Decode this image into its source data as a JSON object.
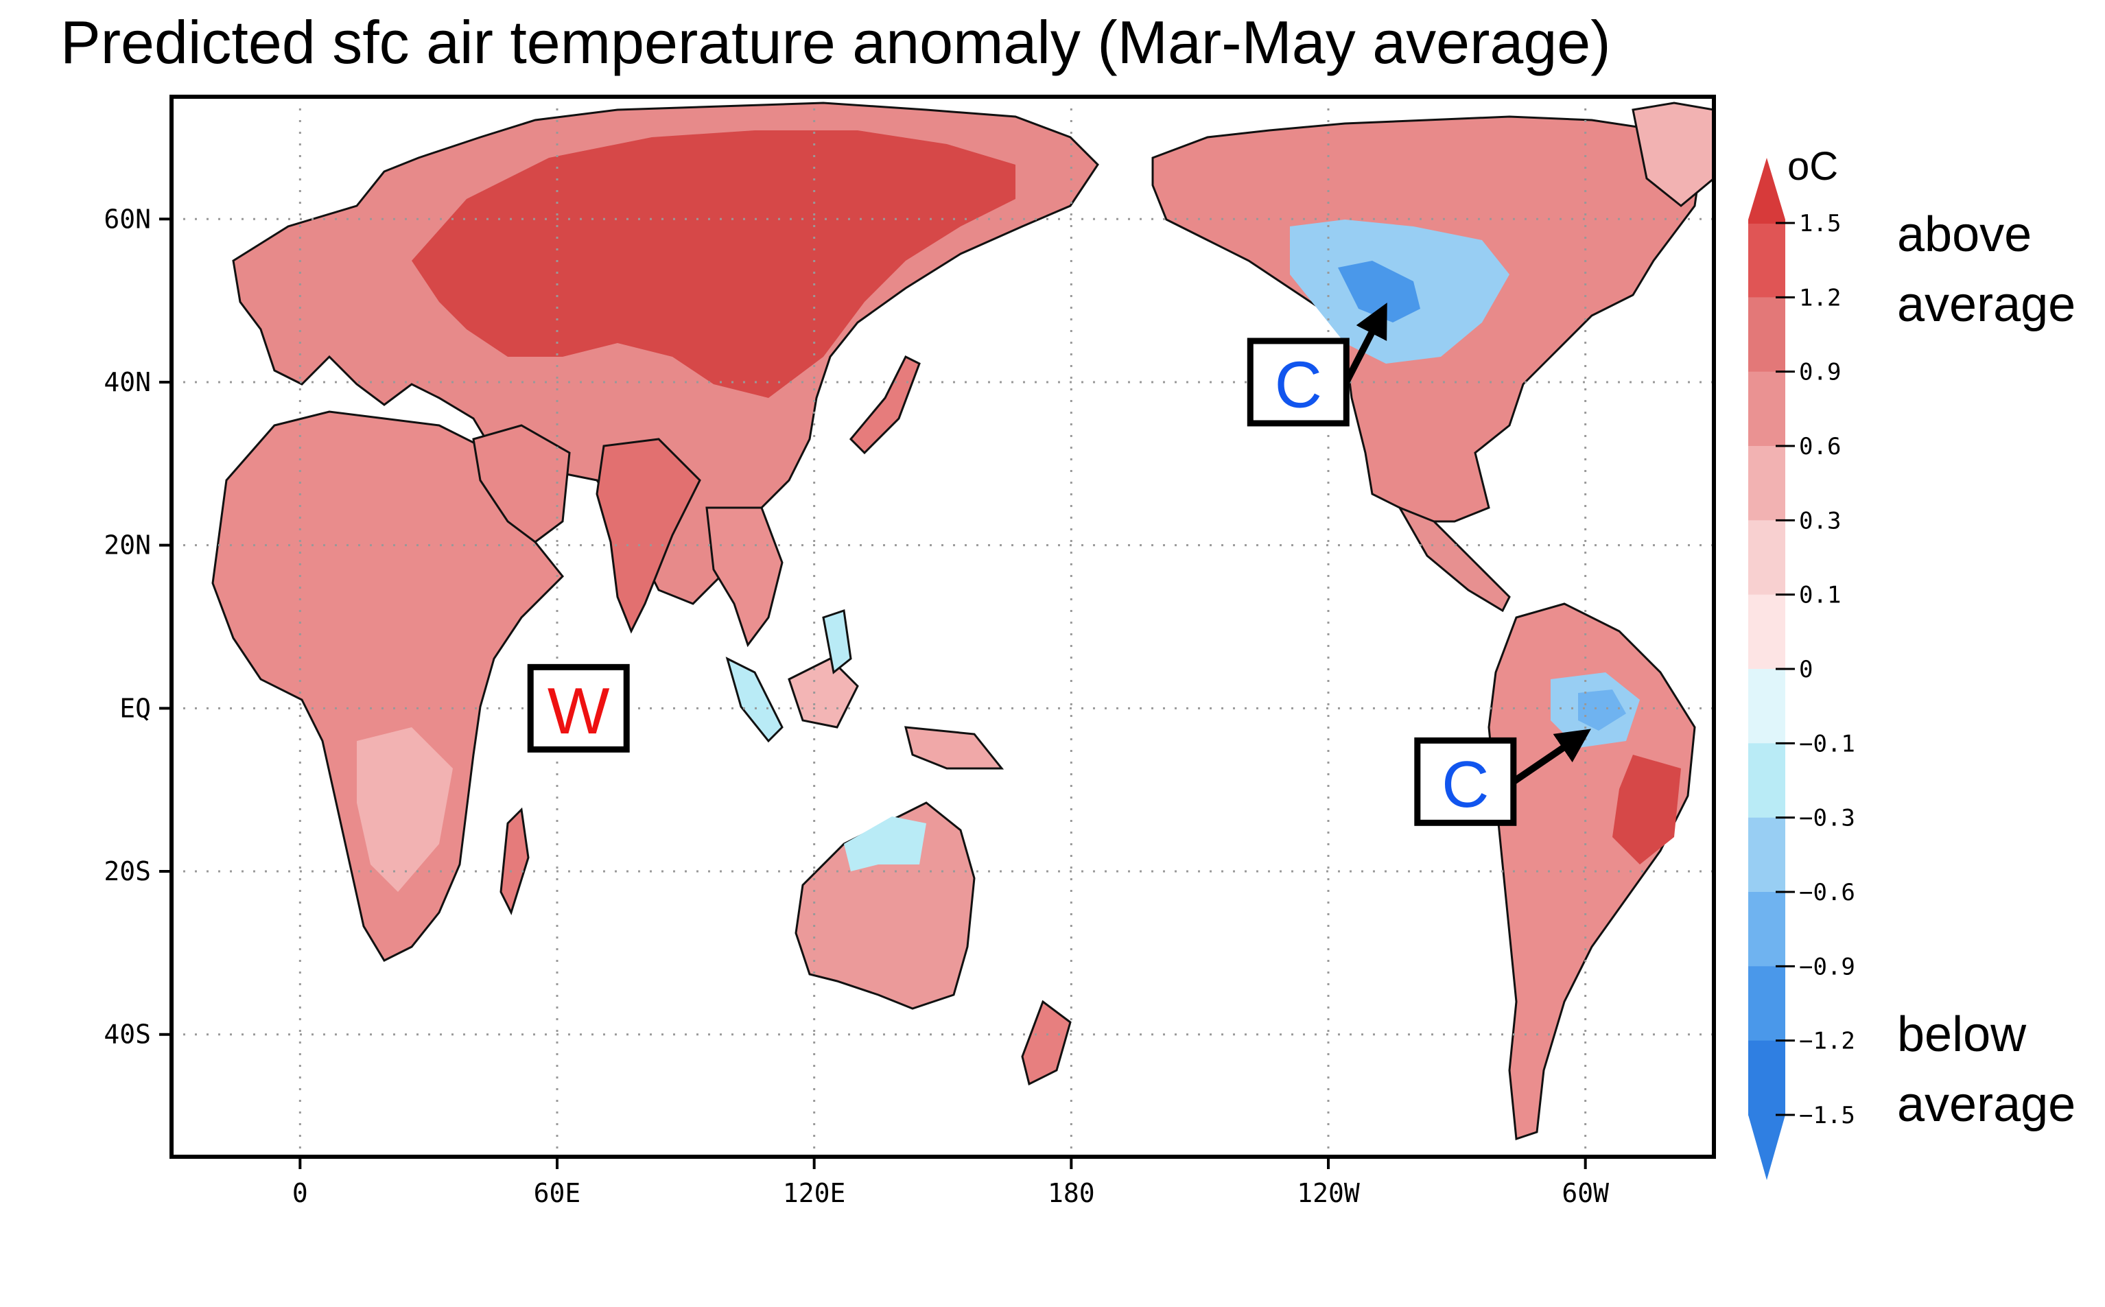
{
  "title": "Predicted sfc air temperature anomaly (Mar-May average)",
  "map": {
    "lat_labels": [
      {
        "text": "60N",
        "lat": 60
      },
      {
        "text": "40N",
        "lat": 40
      },
      {
        "text": "20N",
        "lat": 20
      },
      {
        "text": "EQ",
        "lat": 0
      },
      {
        "text": "20S",
        "lat": -20
      },
      {
        "text": "40S",
        "lat": -40
      }
    ],
    "lon_labels": [
      {
        "text": "0",
        "lon": 0
      },
      {
        "text": "60E",
        "lon": 60
      },
      {
        "text": "120E",
        "lon": 120
      },
      {
        "text": "180",
        "lon": 180
      },
      {
        "text": "120W",
        "lon": 240
      },
      {
        "text": "60W",
        "lon": 300
      }
    ],
    "lon_range": [
      -30,
      330
    ],
    "lat_range": [
      -55,
      75
    ]
  },
  "annotations": [
    {
      "letter": "W",
      "meaning": "warm",
      "color": "#ee1111",
      "lon": 65,
      "lat": 0
    },
    {
      "letter": "C",
      "meaning": "cold",
      "color": "#1155ee",
      "lon": 233,
      "lat": 40,
      "arrow_to": {
        "lon": 253,
        "lat": 49
      }
    },
    {
      "letter": "C",
      "meaning": "cold",
      "color": "#1155ee",
      "lon": 272,
      "lat": -9,
      "arrow_to": {
        "lon": 300,
        "lat": -3
      }
    }
  ],
  "colorbar": {
    "unit": "oC",
    "ticks": [
      "1.5",
      "1.2",
      "0.9",
      "0.6",
      "0.3",
      "0.1",
      "0",
      "−0.1",
      "−0.3",
      "−0.6",
      "−0.9",
      "−1.2",
      "−1.5"
    ],
    "colors": [
      "#d73a3a",
      "#e05555",
      "#e37878",
      "#ea9292",
      "#f2b2b2",
      "#f8d0d0",
      "#fde4e4",
      "#e0f6fb",
      "#b9ebf6",
      "#98cef3",
      "#6fb3f0",
      "#4a98ea",
      "#2f7fe2",
      "#2f7fe2"
    ],
    "above_label_1": "above",
    "above_label_2": "average",
    "below_label_1": "below",
    "below_label_2": "average"
  }
}
